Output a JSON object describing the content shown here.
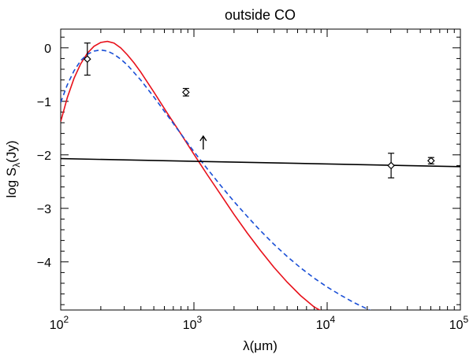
{
  "chart_data": {
    "type": "line",
    "title": "outside CO",
    "xlabel": "λ(μm)",
    "ylabel": "log S_λ(Jy)",
    "xscale": "log",
    "xlim_log10": [
      2,
      5
    ],
    "ylim": [
      -4.9,
      0.35
    ],
    "x_ticks": [
      {
        "base": "10",
        "exp": "2",
        "value_log10": 2
      },
      {
        "base": "10",
        "exp": "3",
        "value_log10": 3
      },
      {
        "base": "10",
        "exp": "4",
        "value_log10": 4
      },
      {
        "base": "10",
        "exp": "5",
        "value_log10": 5
      }
    ],
    "y_ticks": [
      {
        "label": "0",
        "value": 0
      },
      {
        "label": "−1",
        "value": -1
      },
      {
        "label": "−2",
        "value": -2
      },
      {
        "label": "−3",
        "value": -3
      },
      {
        "label": "−4",
        "value": -4
      }
    ],
    "series": [
      {
        "name": "red model (solid)",
        "color": "#e8101a",
        "style": "solid",
        "log10x": [
          2.0,
          2.05,
          2.1,
          2.15,
          2.2,
          2.25,
          2.3,
          2.35,
          2.4,
          2.45,
          2.5,
          2.55,
          2.6,
          2.7,
          2.8,
          2.9,
          3.0,
          3.1,
          3.2,
          3.3,
          3.4,
          3.5,
          3.6,
          3.7,
          3.8,
          3.9,
          4.0,
          4.02
        ],
        "y": [
          -1.38,
          -0.93,
          -0.57,
          -0.3,
          -0.1,
          0.03,
          0.1,
          0.12,
          0.09,
          0.0,
          -0.13,
          -0.28,
          -0.45,
          -0.83,
          -1.22,
          -1.6,
          -1.99,
          -2.37,
          -2.74,
          -3.11,
          -3.46,
          -3.79,
          -4.1,
          -4.38,
          -4.63,
          -4.84,
          -4.98,
          -5.0
        ]
      },
      {
        "name": "blue model (dashed)",
        "color": "#1a4fd6",
        "style": "dashed",
        "log10x": [
          2.0,
          2.05,
          2.1,
          2.15,
          2.2,
          2.25,
          2.3,
          2.35,
          2.4,
          2.45,
          2.5,
          2.6,
          2.7,
          2.8,
          2.9,
          3.0,
          3.1,
          3.2,
          3.3,
          3.4,
          3.5,
          3.6,
          3.7,
          3.8,
          3.9,
          4.0,
          4.1,
          4.2,
          4.3,
          4.38
        ],
        "y": [
          -1.02,
          -0.69,
          -0.43,
          -0.24,
          -0.12,
          -0.06,
          -0.04,
          -0.06,
          -0.12,
          -0.21,
          -0.32,
          -0.6,
          -0.92,
          -1.26,
          -1.6,
          -1.94,
          -2.26,
          -2.57,
          -2.87,
          -3.15,
          -3.42,
          -3.67,
          -3.9,
          -4.11,
          -4.3,
          -4.47,
          -4.62,
          -4.76,
          -4.88,
          -4.97
        ]
      },
      {
        "name": "black power law",
        "color": "#000000",
        "style": "solid",
        "log10x": [
          2.0,
          5.0
        ],
        "y": [
          -2.07,
          -2.22
        ]
      }
    ],
    "points": [
      {
        "log10x": 2.2,
        "y": -0.21,
        "err_low": 0.3,
        "err_high": 0.3
      },
      {
        "log10x": 2.94,
        "y": -0.83,
        "err_low": 0.07,
        "err_high": 0.07
      },
      {
        "log10x": 4.48,
        "y": -2.2,
        "err_low": 0.23,
        "err_high": 0.23
      },
      {
        "log10x": 4.78,
        "y": -2.11,
        "err_low": 0.06,
        "err_high": 0.06
      }
    ],
    "limits": [
      {
        "log10x": 3.07,
        "y": -1.9,
        "direction": "up"
      }
    ]
  }
}
